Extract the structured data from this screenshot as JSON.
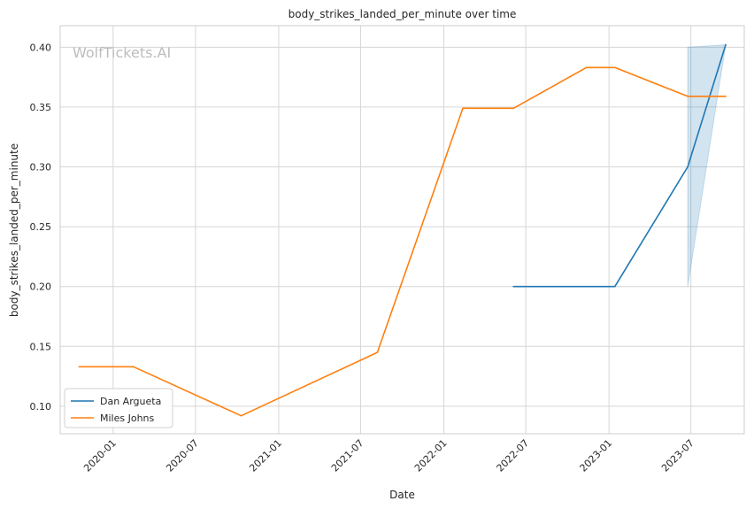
{
  "chart_data": {
    "type": "line",
    "title": "body_strikes_landed_per_minute over time",
    "xlabel": "Date",
    "ylabel": "body_strikes_landed_per_minute",
    "watermark": "WolfTickets.AI",
    "grid": true,
    "legend_position": "lower-left",
    "x_ticks": [
      "2020-01",
      "2020-07",
      "2021-01",
      "2021-07",
      "2022-01",
      "2022-07",
      "2023-01",
      "2023-07"
    ],
    "y_ticks": [
      "0.10",
      "0.15",
      "0.20",
      "0.25",
      "0.30",
      "0.35",
      "0.40"
    ],
    "xlim": [
      "2019-09-06",
      "2023-10-27"
    ],
    "ylim": [
      0.077,
      0.418
    ],
    "series": [
      {
        "name": "Dan Argueta",
        "color": "#1f77b4",
        "x": [
          "2022-06-04",
          "2023-01-14",
          "2023-06-24",
          "2023-09-16"
        ],
        "y": [
          0.2,
          0.2,
          0.3,
          0.402
        ],
        "band": {
          "x": [
            "2023-06-24",
            "2023-09-16"
          ],
          "lower": [
            0.2,
            0.402
          ],
          "upper": [
            0.4,
            0.402
          ]
        }
      },
      {
        "name": "Miles Johns",
        "color": "#ff7f0e",
        "x": [
          "2019-10-18",
          "2020-02-15",
          "2020-10-10",
          "2021-08-07",
          "2022-02-12",
          "2022-06-04",
          "2022-11-12",
          "2023-01-14",
          "2023-06-24",
          "2023-09-16"
        ],
        "y": [
          0.133,
          0.133,
          0.092,
          0.145,
          0.349,
          0.349,
          0.383,
          0.383,
          0.359,
          0.359
        ]
      }
    ]
  }
}
